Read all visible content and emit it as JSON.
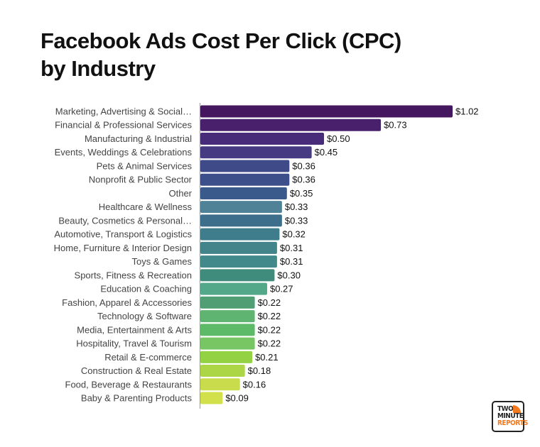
{
  "title_line1": "Facebook Ads Cost Per Click (CPC)",
  "title_line2": "by Industry",
  "logo": {
    "line1": "TWO",
    "line2": "MINUTE",
    "line3": "REPORTS",
    "accent": "#f47a20"
  },
  "chart_data": {
    "type": "bar",
    "orientation": "horizontal",
    "title": "Facebook Ads Cost Per Click (CPC) by Industry",
    "categories": [
      "Marketing, Advertising & Social…",
      "Financial & Professional Services",
      "Manufacturing & Industrial",
      "Events, Weddings & Celebrations",
      "Pets & Animal Services",
      "Nonprofit & Public Sector",
      "Other",
      "Healthcare & Wellness",
      "Beauty, Cosmetics & Personal…",
      "Automotive, Transport & Logistics",
      "Home, Furniture & Interior Design",
      "Toys & Games",
      "Sports, Fitness & Recreation",
      "Education & Coaching",
      "Fashion, Apparel & Accessories",
      "Technology & Software",
      "Media, Entertainment & Arts",
      "Hospitality, Travel & Tourism",
      "Retail & E-commerce",
      "Construction & Real Estate",
      "Food, Beverage & Restaurants",
      "Baby & Parenting Products"
    ],
    "values": [
      1.02,
      0.73,
      0.5,
      0.45,
      0.36,
      0.36,
      0.35,
      0.33,
      0.33,
      0.32,
      0.31,
      0.31,
      0.3,
      0.27,
      0.22,
      0.22,
      0.22,
      0.22,
      0.21,
      0.18,
      0.16,
      0.09
    ],
    "labels": [
      "$1.02",
      "$0.73",
      "$0.50",
      "$0.45",
      "$0.36",
      "$0.36",
      "$0.35",
      "$0.33",
      "$0.33",
      "$0.32",
      "$0.31",
      "$0.31",
      "$0.30",
      "$0.27",
      "$0.22",
      "$0.22",
      "$0.22",
      "$0.22",
      "$0.21",
      "$0.18",
      "$0.16",
      "$0.09"
    ],
    "colors": [
      "#45175e",
      "#48206c",
      "#472c7a",
      "#463b83",
      "#3f4b88",
      "#3d4f8a",
      "#3b5a8c",
      "#4f8297",
      "#3d6e8c",
      "#3f7d8c",
      "#42848a",
      "#41898a",
      "#3f8c7c",
      "#53a88a",
      "#4f9e74",
      "#5eb470",
      "#5dba68",
      "#78c663",
      "#92d243",
      "#acd646",
      "#c8dc4c",
      "#d2e04b"
    ],
    "xlim": [
      0,
      1.02
    ],
    "grid": false
  }
}
